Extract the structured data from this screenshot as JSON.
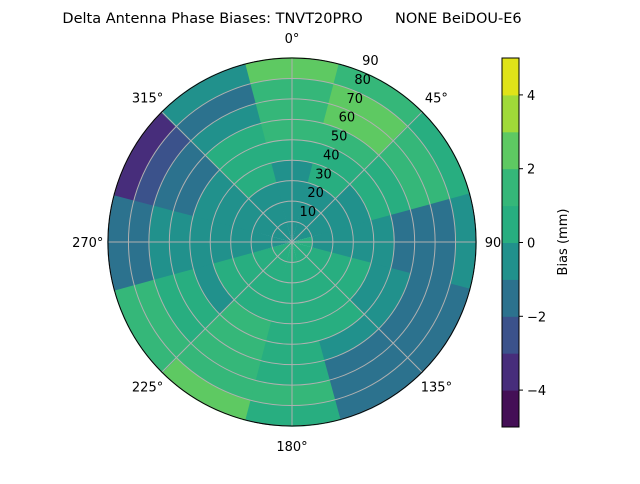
{
  "chart_data": {
    "type": "heatmap",
    "subtype": "polar-filled-contour",
    "title": "Delta Antenna Phase Biases: TNVT20PRO       NONE BeiDOU-E6",
    "angular_ticks": [
      "0°",
      "45°",
      "90°",
      "135°",
      "180°",
      "225°",
      "270°",
      "315°"
    ],
    "radial_ticks": [
      "10",
      "20",
      "30",
      "40",
      "50",
      "60",
      "70",
      "80",
      "90"
    ],
    "radial_range": [
      0,
      90
    ],
    "angular_zero": "top",
    "angular_direction": "clockwise",
    "grid": true,
    "colormap": "viridis",
    "colorbar": {
      "label": "Bias (mm)",
      "range": [
        -5,
        5
      ],
      "levels": [
        -5,
        -4,
        -3,
        -2,
        -1,
        0,
        1,
        2,
        3,
        4,
        5
      ],
      "ticks": [
        "−4",
        "−2",
        "0",
        "2",
        "4"
      ],
      "tick_values": [
        -4,
        -2,
        0,
        2,
        4
      ],
      "colors": [
        "#440f56",
        "#472d7b",
        "#3b528b",
        "#2c728e",
        "#21918c",
        "#28ae80",
        "#35b779",
        "#5ec962",
        "#a0da39",
        "#e0e319"
      ]
    },
    "grid_azimuths": [
      0,
      30,
      60,
      90,
      120,
      150,
      180,
      210,
      240,
      270,
      300,
      330
    ],
    "grid_radii": [
      5,
      15,
      25,
      35,
      45,
      55,
      65,
      75,
      85
    ],
    "values": [
      [
        -0.5,
        -0.5,
        -0.5,
        -0.5,
        0.5,
        1.5,
        1.5,
        1.5,
        2.5
      ],
      [
        -0.5,
        -0.5,
        -0.5,
        0.5,
        0.5,
        1.5,
        2.5,
        2.5,
        1.5
      ],
      [
        -0.5,
        -0.5,
        -0.5,
        -0.5,
        0.5,
        0.5,
        1.5,
        1.5,
        0.5
      ],
      [
        0.5,
        -0.5,
        -0.5,
        -0.5,
        -0.5,
        -1.5,
        -1.5,
        -1.5,
        -0.5
      ],
      [
        0.5,
        0.5,
        0.5,
        0.5,
        -0.5,
        -0.5,
        -1.5,
        -1.5,
        -1.5
      ],
      [
        0.5,
        0.5,
        0.5,
        0.5,
        0.5,
        -0.5,
        -1.5,
        -1.5,
        -1.5
      ],
      [
        0.5,
        0.5,
        0.5,
        0.5,
        0.5,
        0.5,
        0.5,
        1.5,
        0.5
      ],
      [
        0.5,
        0.5,
        0.5,
        0.5,
        1.5,
        1.5,
        1.5,
        1.5,
        2.5
      ],
      [
        0.5,
        0.5,
        0.5,
        0.5,
        -0.5,
        0.5,
        0.5,
        1.5,
        1.5
      ],
      [
        -0.5,
        -0.5,
        -0.5,
        -0.5,
        -0.5,
        -0.5,
        -0.5,
        -1.5,
        -1.5
      ],
      [
        -0.5,
        -0.5,
        -0.5,
        -0.5,
        -0.5,
        -1.5,
        -1.5,
        -2.5,
        -3.5
      ],
      [
        -0.5,
        -0.5,
        -0.5,
        0.5,
        0.5,
        0.5,
        -0.5,
        -1.5,
        -0.5
      ]
    ]
  }
}
